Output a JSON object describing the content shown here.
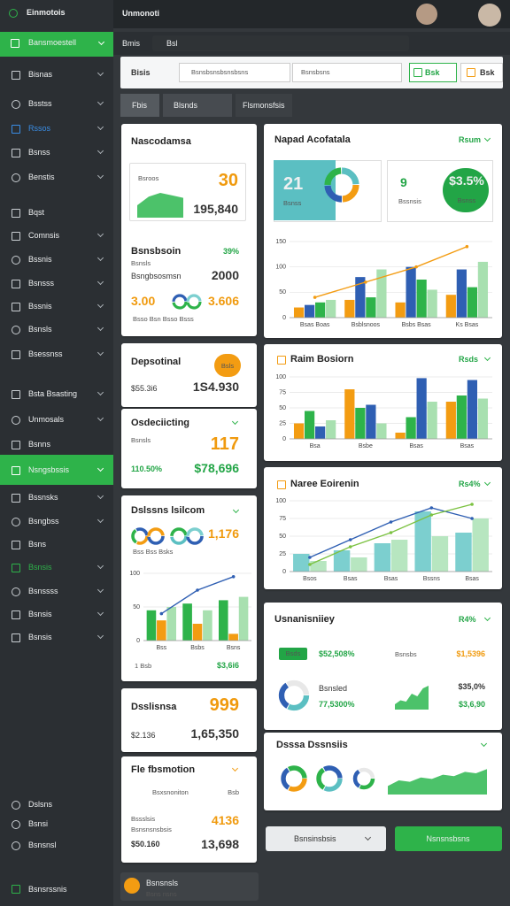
{
  "sidebar": {
    "brand": "Einmotois",
    "active": "Bansmoestell",
    "items": [
      "Bisnas",
      "Bsstss",
      "Rssos",
      "Bsnss",
      "Benstis",
      "Bqst",
      "Comnsis",
      "Bssnis",
      "Bsnsss",
      "Bssnis",
      "Bsnsls",
      "Bsessnss",
      "Bsta Bsasting",
      "Unmosals",
      "Bsnns",
      "Bssnsks",
      "Bsngbss",
      "Bsns",
      "Bsnsis",
      "Bsnssss",
      "Bsnsis",
      "Bsnsis"
    ],
    "selected": "Nsngsbssis",
    "footer": [
      "Dslsns",
      "Bsnsi",
      "Bsnsnsl"
    ],
    "bottom": "Bsnsrssnis"
  },
  "topbar": {
    "title": "Unmonoti",
    "crumb": "Bmis",
    "search": "Bsl"
  },
  "toolbar": {
    "label": "Bisis",
    "input1": "Bsnsbsnsbsnsbsns",
    "input2": "Bsnsbsns",
    "button1": "Bsk",
    "button2": "Bsk"
  },
  "tabs": [
    "Fbis",
    "Blsnds",
    "Flsmonsfsis"
  ],
  "left": {
    "summary": {
      "title": "Nascodamsa",
      "box_label": "Bsroos",
      "box_value": "30",
      "box_sub": "195,840",
      "row_title": "Bsnsbsoin",
      "row_pct": "39%",
      "row_label": "Bsnsls",
      "row_sub": "Bsngbsosmsn",
      "row_value": "2000",
      "a": "3.00",
      "b": "3.606",
      "foot": "Bsso  Bsn  Bsso  Bsss"
    },
    "deposit": {
      "title": "Depsotinal",
      "pill": "Bsls",
      "a": "$55.3i6",
      "b": "1S4.930"
    },
    "decision": {
      "title": "Osdeciicting",
      "label": "Bsnsls",
      "a": "110.50%",
      "b": "117",
      "c": "$78,696"
    },
    "dealers": {
      "title": "Dslssns lsilcom",
      "value": "1,176",
      "foot": "Bss  Bss  Bsks",
      "bottom_a": "1 Bsb",
      "bottom_b": "$3,6i6",
      "chart": {
        "type": "bar",
        "ylim": [
          0,
          100
        ],
        "yticks": [
          0,
          50,
          100
        ],
        "categories": [
          "Bss",
          "Bsbs",
          "Bsns"
        ],
        "series": [
          {
            "color": "#2eb34a",
            "values": [
              45,
              55,
              60
            ]
          },
          {
            "color": "#f39c12",
            "values": [
              30,
              25,
              10
            ]
          },
          {
            "color": "#a8e0b0",
            "values": [
              50,
              45,
              65
            ]
          },
          {
            "color": "#2f5fb3",
            "kind": "line",
            "values": [
              40,
              75,
              95
            ]
          }
        ]
      }
    },
    "delivery": {
      "title": "Dsslisnsa",
      "value": "999",
      "a": "$2.136",
      "b": "1,65,350"
    },
    "promo": {
      "title": "Fle fbsmotion",
      "label": "Bsxsnoniton",
      "tag": "Bsb",
      "sub1": "Bssslsis",
      "sub2": "Bsnsnsnsbsis",
      "value": "4136",
      "a": "$50.160",
      "b": "13,698"
    }
  },
  "right": {
    "napad": {
      "title": "Napad Acofatala",
      "link": "Rsum",
      "tile_value": "21",
      "tile_label": "Bsnss",
      "mid_value": "9",
      "mid_label": "Bssnsis",
      "oval_value": "$3.5%",
      "oval_label": "Bsnss",
      "chart": {
        "type": "bar",
        "ylim": [
          0,
          150
        ],
        "yticks": [
          0,
          50,
          100,
          150
        ],
        "categories": [
          "Bsas Boas",
          "Bsblsnoos",
          "Bsbs Bsas",
          "Ks Bsas"
        ],
        "series": [
          {
            "color": "#f39c12",
            "values": [
              20,
              35,
              30,
              45
            ]
          },
          {
            "color": "#2f5fb3",
            "values": [
              25,
              80,
              100,
              95
            ]
          },
          {
            "color": "#2eb34a",
            "values": [
              30,
              40,
              75,
              60
            ]
          },
          {
            "color": "#a8e0b0",
            "values": [
              35,
              95,
              55,
              110
            ]
          },
          {
            "color": "#f39c12",
            "kind": "line",
            "values": [
              40,
              70,
              100,
              140
            ]
          }
        ]
      }
    },
    "raim": {
      "title": "Raim Bosiorn",
      "link": "Rsds",
      "chart": {
        "type": "bar",
        "ylim": [
          0,
          100
        ],
        "yticks": [
          0,
          25,
          50,
          75,
          100
        ],
        "categories": [
          "Bsa",
          "Bsbe",
          "Bsas",
          "Bsas"
        ],
        "series": [
          {
            "color": "#f39c12",
            "values": [
              25,
              80,
              10,
              60
            ]
          },
          {
            "color": "#2eb34a",
            "values": [
              45,
              50,
              35,
              70
            ]
          },
          {
            "color": "#2f5fb3",
            "values": [
              20,
              55,
              98,
              95
            ]
          },
          {
            "color": "#a8e0b0",
            "values": [
              30,
              25,
              60,
              65
            ]
          }
        ]
      }
    },
    "naree": {
      "title": "Naree Eoirenin",
      "link": "Rs4%",
      "chart": {
        "type": "bar",
        "ylim": [
          0,
          100
        ],
        "yticks": [
          0,
          25,
          50,
          75,
          100
        ],
        "categories": [
          "Bsos",
          "Bsas",
          "Bsas",
          "Bssns",
          "Bsas"
        ],
        "series": [
          {
            "color": "#7ccfcf",
            "values": [
              25,
              30,
              40,
              85,
              55
            ]
          },
          {
            "color": "#b7e6c0",
            "values": [
              15,
              20,
              45,
              50,
              75
            ]
          },
          {
            "color": "#2f5fb3",
            "kind": "line",
            "values": [
              20,
              45,
              70,
              90,
              75
            ]
          },
          {
            "color": "#7cc242",
            "kind": "line",
            "values": [
              10,
              35,
              55,
              80,
              95
            ]
          }
        ]
      }
    },
    "usn": {
      "title": "Usnanisniiey",
      "link": "R4%",
      "pill": "Bsds",
      "a": "$52,508%",
      "label": "Bsnsbs",
      "b": "$1,5396",
      "c_label": "Bsnsled",
      "c": "77,5300%",
      "d": "$35,0%",
      "e": "$3,6,90"
    },
    "dsssa": {
      "title": "Dsssa Dssnsiis"
    }
  },
  "bottom": {
    "search": "Bsnsinsbsis",
    "button": "Nsnsnsbsns",
    "footer_title": "Bsnsnsls",
    "footer_sub": "Bsns nsns"
  }
}
